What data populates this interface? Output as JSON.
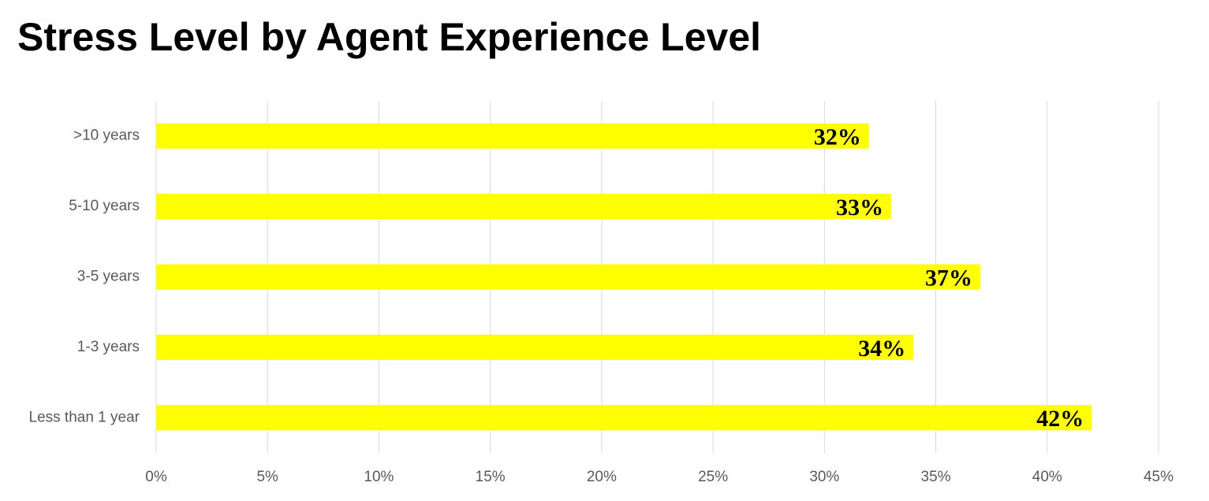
{
  "chart_data": {
    "type": "bar",
    "orientation": "horizontal",
    "title": "Stress Level by Agent Experience Level",
    "categories": [
      ">10 years",
      "5-10 years",
      "3-5 years",
      "1-3 years",
      "Less than 1 year"
    ],
    "values": [
      32,
      33,
      37,
      34,
      42
    ],
    "value_labels": [
      "32%",
      "33%",
      "37%",
      "34%",
      "42%"
    ],
    "color": "#ffff00",
    "xlim": [
      0,
      45
    ],
    "xticks": [
      {
        "value": 0,
        "label": "0%"
      },
      {
        "value": 5,
        "label": "5%"
      },
      {
        "value": 10,
        "label": "10%"
      },
      {
        "value": 15,
        "label": "15%"
      },
      {
        "value": 20,
        "label": "20%"
      },
      {
        "value": 25,
        "label": "25%"
      },
      {
        "value": 30,
        "label": "30%"
      },
      {
        "value": 35,
        "label": "35%"
      },
      {
        "value": 40,
        "label": "40%"
      },
      {
        "value": 45,
        "label": "45%"
      }
    ],
    "grid": true
  }
}
